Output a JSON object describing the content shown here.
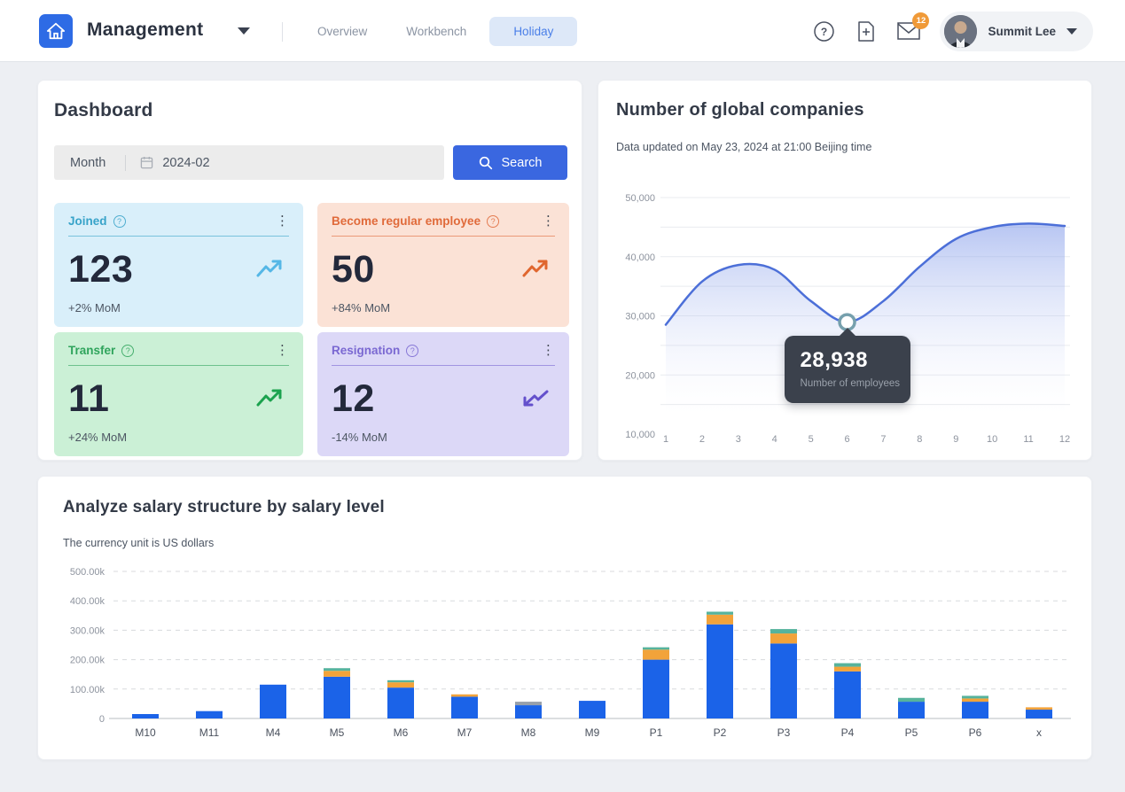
{
  "nav": {
    "brand": "Management",
    "links": [
      {
        "label": "Overview",
        "active": false
      },
      {
        "label": "Workbench",
        "active": false
      },
      {
        "label": "Holiday",
        "active": true
      }
    ],
    "mail_badge": "12",
    "user_name": "Summit Lee"
  },
  "dashboard": {
    "title": "Dashboard",
    "filter": {
      "label": "Month",
      "value": "2024-02",
      "search_label": "Search"
    },
    "stats": [
      {
        "label": "Joined",
        "value": "123",
        "mom": "+2% MoM",
        "trend": "up",
        "bg": "#d9effa",
        "accent": "#38a3c9",
        "arrow_color": "#55b7e6"
      },
      {
        "label": "Become regular employee",
        "value": "50",
        "mom": "+84% MoM",
        "trend": "up",
        "bg": "#fbe2d6",
        "accent": "#e06a3a",
        "arrow_color": "#e0662e"
      },
      {
        "label": "Transfer",
        "value": "11",
        "mom": "+24% MoM",
        "trend": "up",
        "bg": "#cbf0d6",
        "accent": "#2fa45c",
        "arrow_color": "#1ba24e"
      },
      {
        "label": "Resignation",
        "value": "12",
        "mom": "-14% MoM",
        "trend": "down",
        "bg": "#dcd8f7",
        "accent": "#7a68d2",
        "arrow_color": "#6450cc"
      }
    ]
  },
  "companies": {
    "title": "Number of global companies",
    "subtitle": "Data updated on May 23, 2024 at 21:00 Beijing time"
  },
  "salary": {
    "title": "Analyze salary structure by salary level",
    "subtitle": "The currency unit is US dollars"
  },
  "chart_data": [
    {
      "type": "area",
      "title": "Number of global companies",
      "x": [
        1,
        2,
        3,
        4,
        5,
        6,
        7,
        8,
        9,
        10,
        11,
        12
      ],
      "values": [
        28500,
        35800,
        38600,
        37800,
        32500,
        28938,
        32500,
        38300,
        43000,
        45000,
        45600,
        45200
      ],
      "ylim": [
        10000,
        50000
      ],
      "yticks": [
        10000,
        20000,
        30000,
        40000,
        50000
      ],
      "ytick_labels": [
        "10,000",
        "20,000",
        "30,000",
        "40,000",
        "50,000"
      ],
      "grid_step": 5000,
      "grid_on": true,
      "line_color": "#4c6fd8",
      "area_color_top": "rgba(112,140,230,0.50)",
      "marker_ring_color": "#76a0ad",
      "highlight": {
        "x": 6,
        "value": 28938,
        "value_label": "28,938",
        "label": "Number of employees"
      }
    },
    {
      "type": "bar",
      "stacked": true,
      "title": "Analyze salary structure by salary level",
      "categories": [
        "M10",
        "M11",
        "M4",
        "M5",
        "M6",
        "M7",
        "M8",
        "M9",
        "P1",
        "P2",
        "P3",
        "P4",
        "P5",
        "P6",
        "x"
      ],
      "unit": "thousand USD",
      "series": [
        {
          "name": "series1",
          "color": "#1b63e8",
          "values": [
            15,
            25,
            115,
            142,
            105,
            74,
            45,
            60,
            200,
            320,
            255,
            160,
            57,
            57,
            30
          ]
        },
        {
          "name": "series2",
          "color": "#f2a33a",
          "values": [
            0,
            0,
            0,
            20,
            18,
            8,
            0,
            0,
            34,
            33,
            34,
            16,
            0,
            11,
            8
          ]
        },
        {
          "name": "series3",
          "color": "#56b39c",
          "values": [
            0,
            0,
            0,
            9,
            7,
            0,
            0,
            0,
            8,
            10,
            15,
            12,
            13,
            9,
            0
          ]
        },
        {
          "name": "series4",
          "color": "#98a0aa",
          "values": [
            0,
            0,
            0,
            0,
            0,
            0,
            12,
            0,
            0,
            0,
            0,
            0,
            0,
            0,
            0
          ]
        }
      ],
      "ylim": [
        0,
        500
      ],
      "yticks": [
        0,
        100,
        200,
        300,
        400,
        500
      ],
      "ytick_labels": [
        "0",
        "100.00k",
        "200.00k",
        "300.00k",
        "400.00k",
        "500.00k"
      ],
      "grid_on": true,
      "legend": "none"
    }
  ],
  "theme": {
    "primary": "#3a67e0",
    "nav_active_bg": "#dde8f8",
    "nav_active_text": "#4a7fe8",
    "badge_bg": "#f09a38",
    "tooltip_bg": "#3b414c"
  }
}
